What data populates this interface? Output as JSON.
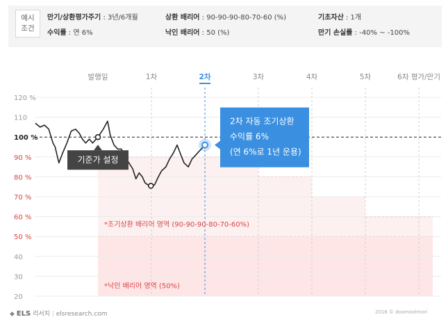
{
  "conditions": {
    "tag_line1": "예시",
    "tag_line2": "조건",
    "maturity_label": "만기/상환평가주기",
    "maturity_value": " : 3년/6개월",
    "yield_label": "수익률",
    "yield_value": " : 연 6%",
    "redemption_label": "상환 배리어",
    "redemption_value": " : 90-90-90-80-70-60 (%)",
    "knockin_label": "낙인 배리어",
    "knockin_value": " : 50 (%)",
    "underlying_label": "기초자산",
    "underlying_value": " : 1개",
    "loss_label": "만기 손실률",
    "loss_value": " : -40% ~ -100%"
  },
  "chart_data": {
    "type": "line",
    "x_ticks": [
      "발행일",
      "1차",
      "2차",
      "3차",
      "4차",
      "5차",
      "6차 평가/만기"
    ],
    "highlight_tick": "2차",
    "y_ticks": [
      "120 %",
      "110",
      "100 %",
      "90 %",
      "80 %",
      "70 %",
      "60 %",
      "50 %",
      "40",
      "30",
      "20"
    ],
    "ylim": [
      20,
      120
    ],
    "reference_level": 100,
    "series": [
      {
        "values": [
          [
            -1.17,
            107
          ],
          [
            -1.08,
            105
          ],
          [
            -1.0,
            106
          ],
          [
            -0.92,
            104
          ],
          [
            -0.84,
            97
          ],
          [
            -0.8,
            95
          ],
          [
            -0.73,
            87
          ],
          [
            -0.66,
            92
          ],
          [
            -0.58,
            97
          ],
          [
            -0.5,
            103
          ],
          [
            -0.42,
            104
          ],
          [
            -0.35,
            102
          ],
          [
            -0.29,
            99
          ],
          [
            -0.23,
            97
          ],
          [
            -0.16,
            99
          ],
          [
            -0.1,
            97
          ],
          [
            0,
            100
          ],
          [
            0.1,
            104
          ],
          [
            0.18,
            108
          ],
          [
            0.23,
            101
          ],
          [
            0.3,
            96
          ],
          [
            0.37,
            94
          ],
          [
            0.44,
            94
          ],
          [
            0.5,
            90
          ],
          [
            0.58,
            87
          ],
          [
            0.65,
            84
          ],
          [
            0.71,
            79
          ],
          [
            0.77,
            82
          ],
          [
            0.83,
            80
          ],
          [
            0.88,
            77
          ],
          [
            0.93,
            76
          ],
          [
            0.99,
            75.5
          ],
          [
            1.06,
            76
          ],
          [
            1.13,
            80
          ],
          [
            1.19,
            83
          ],
          [
            1.27,
            85
          ],
          [
            1.34,
            89
          ],
          [
            1.41,
            92
          ],
          [
            1.48,
            96
          ],
          [
            1.55,
            91
          ],
          [
            1.61,
            87
          ],
          [
            1.69,
            85
          ],
          [
            1.76,
            89
          ],
          [
            1.83,
            91
          ],
          [
            2.0,
            96
          ]
        ]
      }
    ],
    "base_point": {
      "x": 0,
      "y": 100
    },
    "low_point": {
      "x": 0.99,
      "y": 75.5
    },
    "redemption_point": {
      "x": 2.0,
      "y": 96
    },
    "redemption_barriers": [
      {
        "from": 0,
        "to": 3,
        "level": 90
      },
      {
        "from": 3,
        "to": 4,
        "level": 80
      },
      {
        "from": 4,
        "to": 5,
        "level": 70
      },
      {
        "from": 5,
        "to": 6,
        "level": 60
      }
    ],
    "knockin_barrier": 50,
    "labels": {
      "base_callout": "기준가 설정",
      "redemption_callout_line1": "2차 자동 조기상환",
      "redemption_callout_line2": "수익률 6%",
      "redemption_callout_line3": "(연 6%로 1년 운용)",
      "redemption_zone": "*조기상환 배리어 영역 (90-90-90-80-70-60%)",
      "knockin_zone": "*낙인 배리어 영역 (50%)"
    },
    "colors": {
      "line": "#222222",
      "accent": "#3a8fe0",
      "barrier_fill": "#ffe6e6",
      "barrier_line": "#e05555",
      "label_red": "#d64545",
      "callout_dark": "#444444"
    }
  },
  "footer": {
    "brand": "ELS",
    "brand_korean": "리서치",
    "site": "elsresearch.com",
    "copyright": "2016 © doomoolmori"
  }
}
